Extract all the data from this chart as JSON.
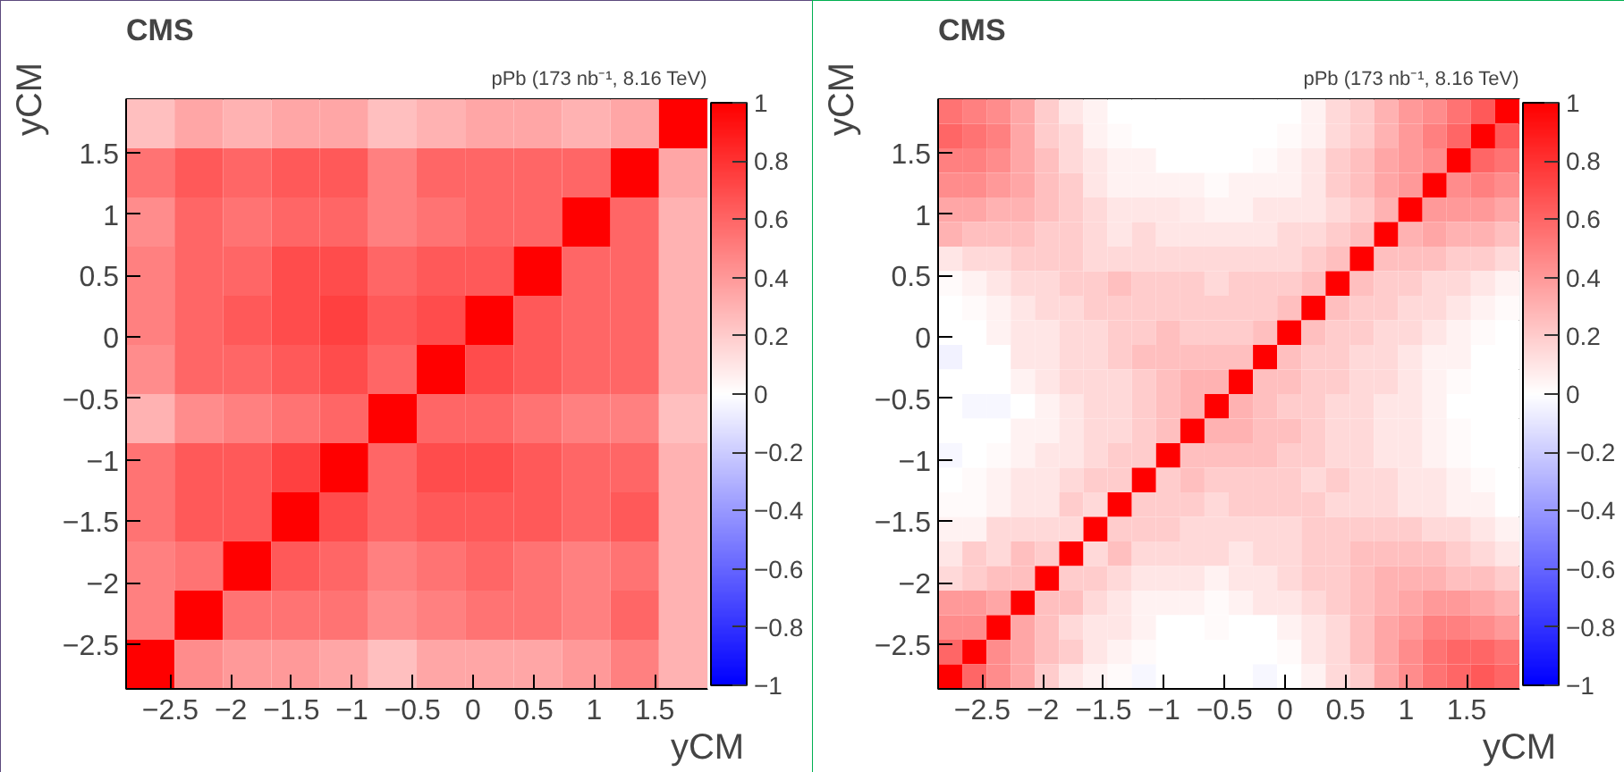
{
  "chart_data": [
    {
      "type": "heatmap",
      "title": "CMS",
      "subtitle": "pPb (173 nb⁻¹, 8.16 TeV)",
      "xlabel": "yCM",
      "ylabel": "yCM",
      "x": [
        -2.665,
        -2.265,
        -1.865,
        -1.465,
        -1.065,
        -0.665,
        -0.265,
        0.135,
        0.535,
        0.935,
        1.335,
        1.735
      ],
      "y": [
        1.735,
        1.335,
        0.935,
        0.535,
        0.135,
        -0.265,
        -0.665,
        -1.065,
        -1.465,
        -1.865,
        -2.265,
        -2.665
      ],
      "xlim": [
        -2.865,
        1.935
      ],
      "ylim": [
        -2.865,
        1.935
      ],
      "xticks": [
        -2.5,
        -2,
        -1.5,
        -1,
        -0.5,
        0,
        0.5,
        1,
        1.5
      ],
      "yticks": [
        -2.5,
        -2,
        -1.5,
        -1,
        -0.5,
        0,
        0.5,
        1,
        1.5
      ],
      "clim": [
        -1,
        1
      ],
      "cticks": [
        -1,
        -0.8,
        -0.6,
        -0.4,
        -0.2,
        0,
        0.2,
        0.4,
        0.6,
        0.8,
        1
      ],
      "cells": [
        [
          0.25,
          0.35,
          0.3,
          0.35,
          0.35,
          0.25,
          0.3,
          0.35,
          0.35,
          0.3,
          0.35,
          1
        ],
        [
          0.55,
          0.65,
          0.6,
          0.65,
          0.65,
          0.5,
          0.6,
          0.6,
          0.6,
          0.6,
          1,
          0.35
        ],
        [
          0.45,
          0.6,
          0.55,
          0.6,
          0.6,
          0.5,
          0.55,
          0.6,
          0.6,
          1,
          0.6,
          0.3
        ],
        [
          0.5,
          0.6,
          0.6,
          0.7,
          0.7,
          0.6,
          0.65,
          0.65,
          1,
          0.6,
          0.6,
          0.3
        ],
        [
          0.5,
          0.6,
          0.65,
          0.7,
          0.75,
          0.65,
          0.7,
          1,
          0.65,
          0.6,
          0.6,
          0.3
        ],
        [
          0.45,
          0.6,
          0.6,
          0.65,
          0.7,
          0.6,
          1,
          0.7,
          0.65,
          0.6,
          0.6,
          0.3
        ],
        [
          0.3,
          0.45,
          0.5,
          0.55,
          0.6,
          1,
          0.6,
          0.6,
          0.55,
          0.5,
          0.5,
          0.25
        ],
        [
          0.55,
          0.65,
          0.65,
          0.75,
          1,
          0.6,
          0.7,
          0.7,
          0.65,
          0.6,
          0.6,
          0.3
        ],
        [
          0.55,
          0.65,
          0.65,
          1,
          0.7,
          0.6,
          0.65,
          0.65,
          0.65,
          0.6,
          0.65,
          0.3
        ],
        [
          0.5,
          0.55,
          1,
          0.65,
          0.6,
          0.5,
          0.55,
          0.6,
          0.55,
          0.5,
          0.55,
          0.3
        ],
        [
          0.5,
          1,
          0.55,
          0.55,
          0.55,
          0.45,
          0.5,
          0.55,
          0.55,
          0.5,
          0.6,
          0.3
        ],
        [
          1,
          0.45,
          0.4,
          0.4,
          0.35,
          0.25,
          0.35,
          0.35,
          0.35,
          0.4,
          0.5,
          0.3
        ]
      ]
    },
    {
      "type": "heatmap",
      "title": "CMS",
      "subtitle": "pPb (173 nb⁻¹, 8.16 TeV)",
      "xlabel": "yCM",
      "ylabel": "yCM",
      "x": [
        -2.765,
        -2.565,
        -2.365,
        -2.165,
        -1.965,
        -1.765,
        -1.565,
        -1.365,
        -1.165,
        -0.965,
        -0.765,
        -0.565,
        -0.365,
        -0.165,
        0.035,
        0.235,
        0.435,
        0.635,
        0.835,
        1.035,
        1.235,
        1.435,
        1.635,
        1.835
      ],
      "y": [
        1.835,
        1.635,
        1.435,
        1.235,
        1.035,
        0.835,
        0.635,
        0.435,
        0.235,
        0.035,
        -0.165,
        -0.365,
        -0.565,
        -0.765,
        -0.965,
        -1.165,
        -1.365,
        -1.565,
        -1.765,
        -1.965,
        -2.165,
        -2.365,
        -2.565,
        -2.765
      ],
      "xlim": [
        -2.865,
        1.935
      ],
      "ylim": [
        -2.865,
        1.935
      ],
      "xticks": [
        -2.5,
        -2,
        -1.5,
        -1,
        -0.5,
        0,
        0.5,
        1,
        1.5
      ],
      "yticks": [
        -2.5,
        -2,
        -1.5,
        -1,
        -0.5,
        0,
        0.5,
        1,
        1.5
      ],
      "clim": [
        -1,
        1
      ],
      "cticks": [
        -1,
        -0.8,
        -0.6,
        -0.4,
        -0.2,
        0,
        0.2,
        0.4,
        0.6,
        0.8,
        1
      ],
      "cells": [
        [
          0.55,
          0.5,
          0.45,
          0.35,
          0.2,
          0.1,
          0.05,
          0,
          0,
          0,
          0,
          0,
          0,
          0,
          0,
          0.05,
          0.15,
          0.2,
          0.3,
          0.4,
          0.45,
          0.55,
          0.65,
          1
        ],
        [
          0.6,
          0.55,
          0.5,
          0.35,
          0.2,
          0.15,
          0.05,
          0.02,
          0,
          0,
          0,
          0,
          0,
          0,
          0.02,
          0.05,
          0.15,
          0.2,
          0.3,
          0.4,
          0.5,
          0.6,
          1,
          0.65
        ],
        [
          0.5,
          0.5,
          0.45,
          0.35,
          0.25,
          0.15,
          0.1,
          0.05,
          0.05,
          0,
          0,
          0,
          0,
          0.02,
          0.05,
          0.1,
          0.2,
          0.25,
          0.35,
          0.4,
          0.45,
          1,
          0.6,
          0.55
        ],
        [
          0.45,
          0.45,
          0.4,
          0.35,
          0.25,
          0.2,
          0.1,
          0.05,
          0.05,
          0.05,
          0.05,
          0.02,
          0.05,
          0.05,
          0.05,
          0.1,
          0.2,
          0.25,
          0.35,
          0.4,
          1,
          0.45,
          0.5,
          0.45
        ],
        [
          0.35,
          0.35,
          0.3,
          0.3,
          0.25,
          0.2,
          0.15,
          0.1,
          0.1,
          0.1,
          0.08,
          0.05,
          0.05,
          0.1,
          0.1,
          0.1,
          0.15,
          0.2,
          0.3,
          1,
          0.4,
          0.4,
          0.4,
          0.35
        ],
        [
          0.3,
          0.25,
          0.25,
          0.25,
          0.2,
          0.2,
          0.15,
          0.1,
          0.15,
          0.1,
          0.1,
          0.1,
          0.1,
          0.1,
          0.15,
          0.15,
          0.2,
          0.25,
          1,
          0.3,
          0.35,
          0.3,
          0.3,
          0.25
        ],
        [
          0.1,
          0.15,
          0.15,
          0.2,
          0.2,
          0.2,
          0.15,
          0.15,
          0.15,
          0.15,
          0.15,
          0.15,
          0.15,
          0.15,
          0.15,
          0.2,
          0.25,
          1,
          0.25,
          0.25,
          0.25,
          0.2,
          0.2,
          0.15
        ],
        [
          0.02,
          0.05,
          0.1,
          0.15,
          0.15,
          0.2,
          0.2,
          0.25,
          0.2,
          0.2,
          0.2,
          0.15,
          0.2,
          0.2,
          0.2,
          0.25,
          1,
          0.25,
          0.2,
          0.2,
          0.15,
          0.15,
          0.1,
          0.05
        ],
        [
          0,
          0.02,
          0.05,
          0.1,
          0.15,
          0.15,
          0.2,
          0.2,
          0.2,
          0.2,
          0.2,
          0.2,
          0.2,
          0.2,
          0.25,
          1,
          0.25,
          0.2,
          0.2,
          0.15,
          0.15,
          0.1,
          0.05,
          0.02
        ],
        [
          0,
          0,
          0.05,
          0.1,
          0.1,
          0.15,
          0.15,
          0.2,
          0.2,
          0.25,
          0.2,
          0.2,
          0.2,
          0.25,
          1,
          0.25,
          0.2,
          0.2,
          0.15,
          0.15,
          0.1,
          0.05,
          0.02,
          0
        ],
        [
          -0.05,
          0,
          0,
          0.1,
          0.1,
          0.15,
          0.15,
          0.2,
          0.25,
          0.25,
          0.25,
          0.25,
          0.25,
          1,
          0.25,
          0.2,
          0.2,
          0.15,
          0.15,
          0.1,
          0.05,
          0.05,
          0,
          0
        ],
        [
          0,
          0,
          0,
          0.05,
          0.1,
          0.15,
          0.15,
          0.15,
          0.2,
          0.25,
          0.3,
          0.3,
          1,
          0.25,
          0.25,
          0.2,
          0.2,
          0.15,
          0.15,
          0.1,
          0.05,
          0.02,
          0,
          0
        ],
        [
          0,
          -0.03,
          -0.03,
          0,
          0.05,
          0.1,
          0.15,
          0.15,
          0.2,
          0.25,
          0.3,
          1,
          0.3,
          0.25,
          0.2,
          0.2,
          0.15,
          0.15,
          0.1,
          0.1,
          0.05,
          0,
          0,
          0
        ],
        [
          0,
          0,
          0,
          0.05,
          0.05,
          0.1,
          0.15,
          0.15,
          0.2,
          0.25,
          1,
          0.3,
          0.3,
          0.25,
          0.25,
          0.2,
          0.15,
          0.15,
          0.1,
          0.1,
          0.05,
          0.02,
          0,
          0
        ],
        [
          -0.03,
          0,
          0.02,
          0.05,
          0.1,
          0.1,
          0.15,
          0.2,
          0.2,
          1,
          0.25,
          0.25,
          0.25,
          0.25,
          0.2,
          0.2,
          0.15,
          0.15,
          0.1,
          0.1,
          0.05,
          0.02,
          0,
          0
        ],
        [
          0,
          0.02,
          0.05,
          0.1,
          0.1,
          0.15,
          0.2,
          0.2,
          1,
          0.2,
          0.25,
          0.2,
          0.2,
          0.2,
          0.2,
          0.15,
          0.2,
          0.15,
          0.15,
          0.1,
          0.1,
          0.05,
          0.02,
          0
        ],
        [
          0.02,
          0.02,
          0.05,
          0.1,
          0.1,
          0.2,
          0.15,
          1,
          0.2,
          0.2,
          0.2,
          0.15,
          0.2,
          0.2,
          0.2,
          0.2,
          0.15,
          0.15,
          0.15,
          0.1,
          0.1,
          0.05,
          0.05,
          0
        ],
        [
          0.05,
          0.05,
          0.15,
          0.15,
          0.15,
          0.15,
          1,
          0.2,
          0.2,
          0.2,
          0.15,
          0.15,
          0.15,
          0.15,
          0.15,
          0.2,
          0.2,
          0.2,
          0.2,
          0.2,
          0.15,
          0.15,
          0.1,
          0.05
        ],
        [
          0.1,
          0.2,
          0.15,
          0.25,
          0.2,
          1,
          0.15,
          0.25,
          0.15,
          0.15,
          0.15,
          0.15,
          0.1,
          0.15,
          0.15,
          0.2,
          0.2,
          0.25,
          0.25,
          0.25,
          0.25,
          0.2,
          0.15,
          0.1
        ],
        [
          0.15,
          0.2,
          0.25,
          0.25,
          1,
          0.2,
          0.2,
          0.15,
          0.1,
          0.1,
          0.1,
          0.05,
          0.1,
          0.1,
          0.15,
          0.2,
          0.2,
          0.25,
          0.3,
          0.3,
          0.3,
          0.25,
          0.25,
          0.2
        ],
        [
          0.4,
          0.4,
          0.35,
          1,
          0.25,
          0.25,
          0.15,
          0.1,
          0.05,
          0.05,
          0.05,
          0.02,
          0.05,
          0.1,
          0.1,
          0.15,
          0.2,
          0.25,
          0.3,
          0.35,
          0.4,
          0.4,
          0.35,
          0.3
        ],
        [
          0.45,
          0.45,
          1,
          0.35,
          0.25,
          0.15,
          0.1,
          0.1,
          0.05,
          0,
          0,
          0.02,
          0,
          0,
          0.05,
          0.1,
          0.15,
          0.25,
          0.35,
          0.4,
          0.5,
          0.5,
          0.45,
          0.4
        ],
        [
          0.6,
          1,
          0.45,
          0.35,
          0.25,
          0.2,
          0.1,
          0.05,
          0.02,
          0,
          0,
          0,
          0,
          0,
          0.02,
          0.1,
          0.15,
          0.25,
          0.35,
          0.45,
          0.55,
          0.6,
          0.6,
          0.55
        ],
        [
          1,
          0.6,
          0.45,
          0.35,
          0.2,
          0.1,
          0.05,
          0.02,
          -0.03,
          0,
          0,
          0,
          0,
          -0.03,
          0,
          0.05,
          0.15,
          0.2,
          0.35,
          0.45,
          0.55,
          0.6,
          0.65,
          0.6
        ]
      ]
    }
  ]
}
